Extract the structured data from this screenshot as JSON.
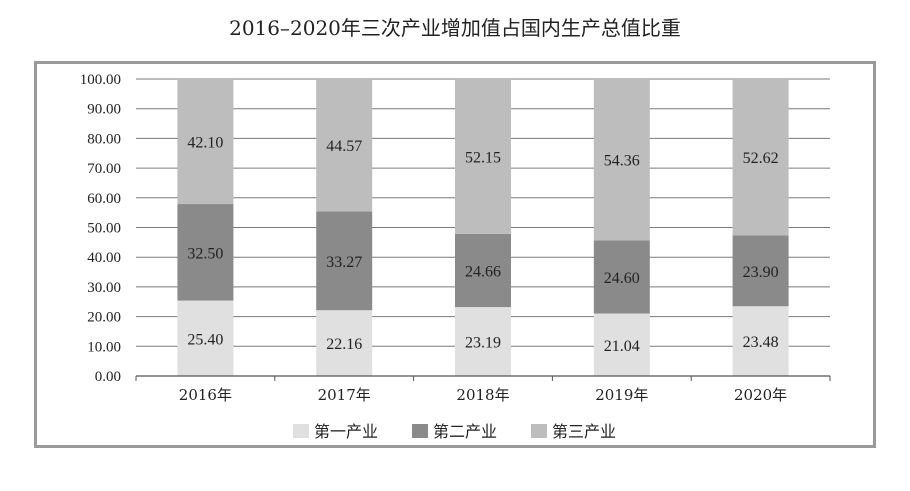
{
  "chart_data": {
    "type": "bar",
    "stacked": true,
    "title": "2016–2020年三次产业增加值占国内生产总值比重",
    "categories": [
      "2016年",
      "2017年",
      "2018年",
      "2019年",
      "2020年"
    ],
    "series": [
      {
        "name": "第一产业",
        "values": [
          25.4,
          22.16,
          23.19,
          21.04,
          23.48
        ],
        "color": "#e0e0e0"
      },
      {
        "name": "第二产业",
        "values": [
          32.5,
          33.27,
          24.66,
          24.6,
          23.9
        ],
        "color": "#8a8a8a"
      },
      {
        "name": "第三产业",
        "values": [
          42.1,
          44.57,
          52.15,
          54.36,
          52.62
        ],
        "color": "#bdbdbd"
      }
    ],
    "yticks": [
      "0.00",
      "10.00",
      "20.00",
      "30.00",
      "40.00",
      "50.00",
      "60.00",
      "70.00",
      "80.00",
      "90.00",
      "100.00"
    ],
    "ylim": [
      0,
      100
    ],
    "grid": true,
    "legend_position": "bottom"
  }
}
